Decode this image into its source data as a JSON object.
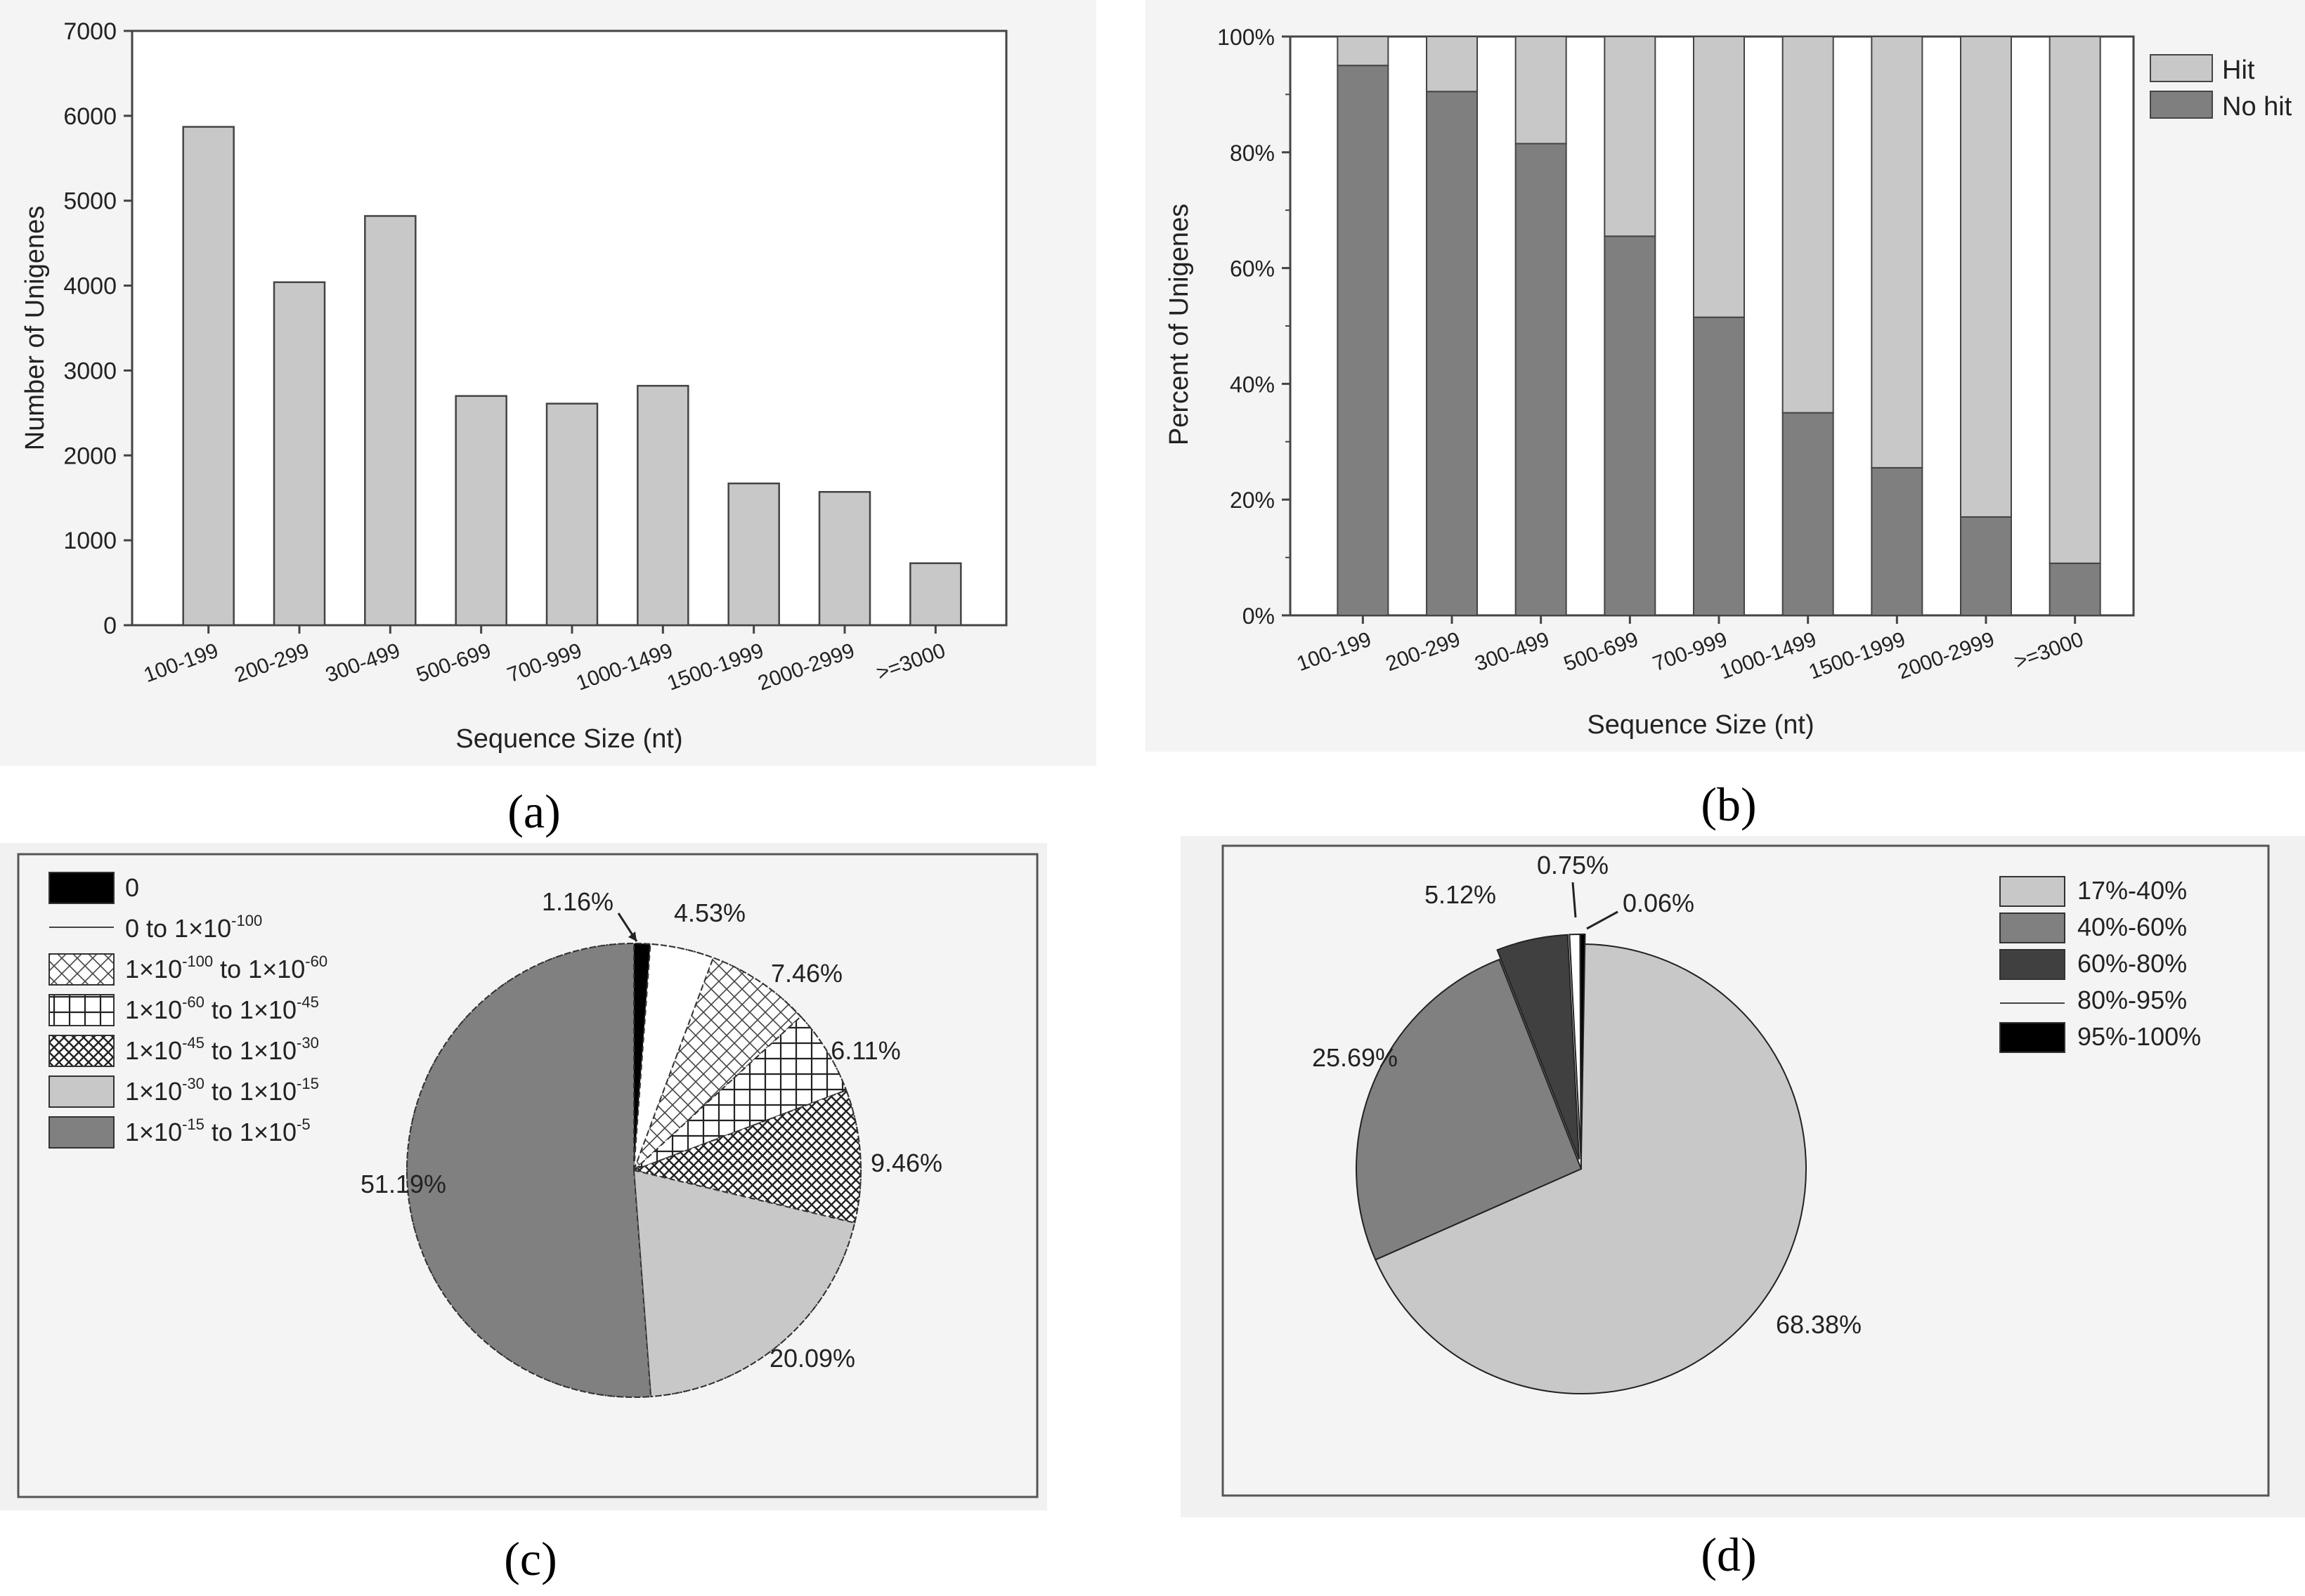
{
  "colors": {
    "bar": "#c8c8c8",
    "dark": "#808080",
    "hit": "#c8c8c8",
    "nohit": "#7f7f7f",
    "pie_black": "#000000",
    "pie_white": "#ffffff",
    "pie_light": "#c8c8c8",
    "pie_mid": "#808080",
    "pie_dark": "#404040"
  },
  "chart_data": [
    {
      "panel": "a",
      "caption": "(a)",
      "type": "bar",
      "title": "",
      "xlabel": "Sequence Size (nt)",
      "ylabel": "Number of Unigenes",
      "categories": [
        "100-199",
        "200-299",
        "300-499",
        "500-699",
        "700-999",
        "1000-1499",
        "1500-1999",
        "2000-2999",
        ">=3000"
      ],
      "values": [
        5870,
        4040,
        4820,
        2700,
        2610,
        2820,
        1670,
        1570,
        730
      ],
      "ylim": [
        0,
        7000
      ],
      "yticks": [
        "0",
        "1000",
        "2000",
        "3000",
        "4000",
        "5000",
        "6000",
        "7000"
      ]
    },
    {
      "panel": "b",
      "caption": "(b)",
      "type": "bar",
      "stacked": true,
      "xlabel": "Sequence Size (nt)",
      "ylabel": "Percent of Unigenes",
      "categories": [
        "100-199",
        "200-299",
        "300-499",
        "500-699",
        "700-999",
        "1000-1499",
        "1500-1999",
        "2000-2999",
        ">=3000"
      ],
      "series": [
        {
          "name": "No hit",
          "values": [
            95,
            90.5,
            81.5,
            65.5,
            51.5,
            35,
            25.5,
            17,
            9
          ]
        },
        {
          "name": "Hit",
          "values": [
            5,
            9.5,
            18.5,
            34.5,
            48.5,
            65,
            74.5,
            83,
            91
          ]
        }
      ],
      "ylim": [
        0,
        100
      ],
      "yticks": [
        "0%",
        "20%",
        "40%",
        "60%",
        "80%",
        "100%"
      ],
      "legend": [
        "Hit",
        "No hit"
      ],
      "legend_position": "right"
    },
    {
      "panel": "c",
      "caption": "(c)",
      "type": "pie",
      "slices": [
        {
          "key": "s0",
          "value": 1.16,
          "label": "1.16%",
          "legend_main": "0",
          "legend_parts": []
        },
        {
          "key": "s1",
          "value": 4.53,
          "label": "4.53%",
          "legend_parts": [
            "0 to 1×10",
            "-100"
          ]
        },
        {
          "key": "s2",
          "value": 7.46,
          "label": "7.46%",
          "legend_parts": [
            "1×10",
            "-100",
            " to 1×10",
            "-60"
          ]
        },
        {
          "key": "s3",
          "value": 6.11,
          "label": "6.11%",
          "legend_parts": [
            "1×10",
            "-60",
            " to 1×10",
            "-45"
          ]
        },
        {
          "key": "s4",
          "value": 9.46,
          "label": "9.46%",
          "legend_parts": [
            "1×10",
            "-45",
            " to 1×10",
            "-30"
          ]
        },
        {
          "key": "s5",
          "value": 20.09,
          "label": "20.09%",
          "legend_parts": [
            "1×10",
            "-30",
            " to 1×10",
            "-15"
          ]
        },
        {
          "key": "s6",
          "value": 51.19,
          "label": "51.19%",
          "legend_parts": [
            "1×10",
            "-15",
            " to 1×10",
            "-5"
          ]
        }
      ],
      "legend_position": "top-left"
    },
    {
      "panel": "d",
      "caption": "(d)",
      "type": "pie",
      "slices": [
        {
          "key": "d1",
          "value": 68.38,
          "label": "68.38%",
          "legend": "17%-40%"
        },
        {
          "key": "d2",
          "value": 25.69,
          "label": "25.69%",
          "legend": "40%-60%"
        },
        {
          "key": "d3",
          "value": 5.12,
          "label": "5.12%",
          "legend": "60%-80%"
        },
        {
          "key": "d4",
          "value": 0.75,
          "label": "0.75%",
          "legend": "80%-95%"
        },
        {
          "key": "d5",
          "value": 0.06,
          "label": "0.06%",
          "legend": "95%-100%"
        }
      ],
      "legend_position": "top-right"
    }
  ]
}
